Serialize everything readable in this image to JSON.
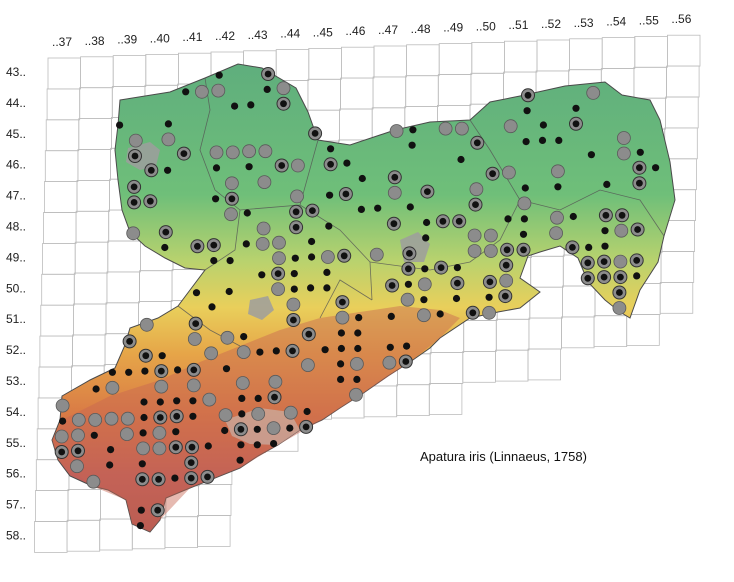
{
  "map": {
    "species_label": "Apatura iris (Linnaeus, 1758)",
    "column_labels": [
      "..37",
      "..38",
      "..39",
      "..40",
      "..41",
      "..42",
      "..43",
      "..44",
      "..45",
      "..46",
      "..47",
      "..48",
      "..49",
      "..50",
      "..51",
      "..52",
      "..53",
      "..54",
      "..55",
      "..56"
    ],
    "row_labels": [
      "43..",
      "44..",
      "45..",
      "46..",
      "47..",
      "48..",
      "49..",
      "50..",
      "51..",
      "52..",
      "53..",
      "54..",
      "55..",
      "56..",
      "57..",
      "58.."
    ],
    "colors": {
      "lowland": "#5fb57a",
      "hills": "#c9d46a",
      "midland": "#e8b04e",
      "upland": "#d0704a",
      "peaks": "#b75a55",
      "urban": "#9a9a9a",
      "marker_recent": "#111111",
      "marker_old": "#8c8c8c"
    },
    "marker_legend": [
      "recent record (black dot)",
      "older record (grey circle)",
      "both (grey ring with black core)"
    ]
  }
}
